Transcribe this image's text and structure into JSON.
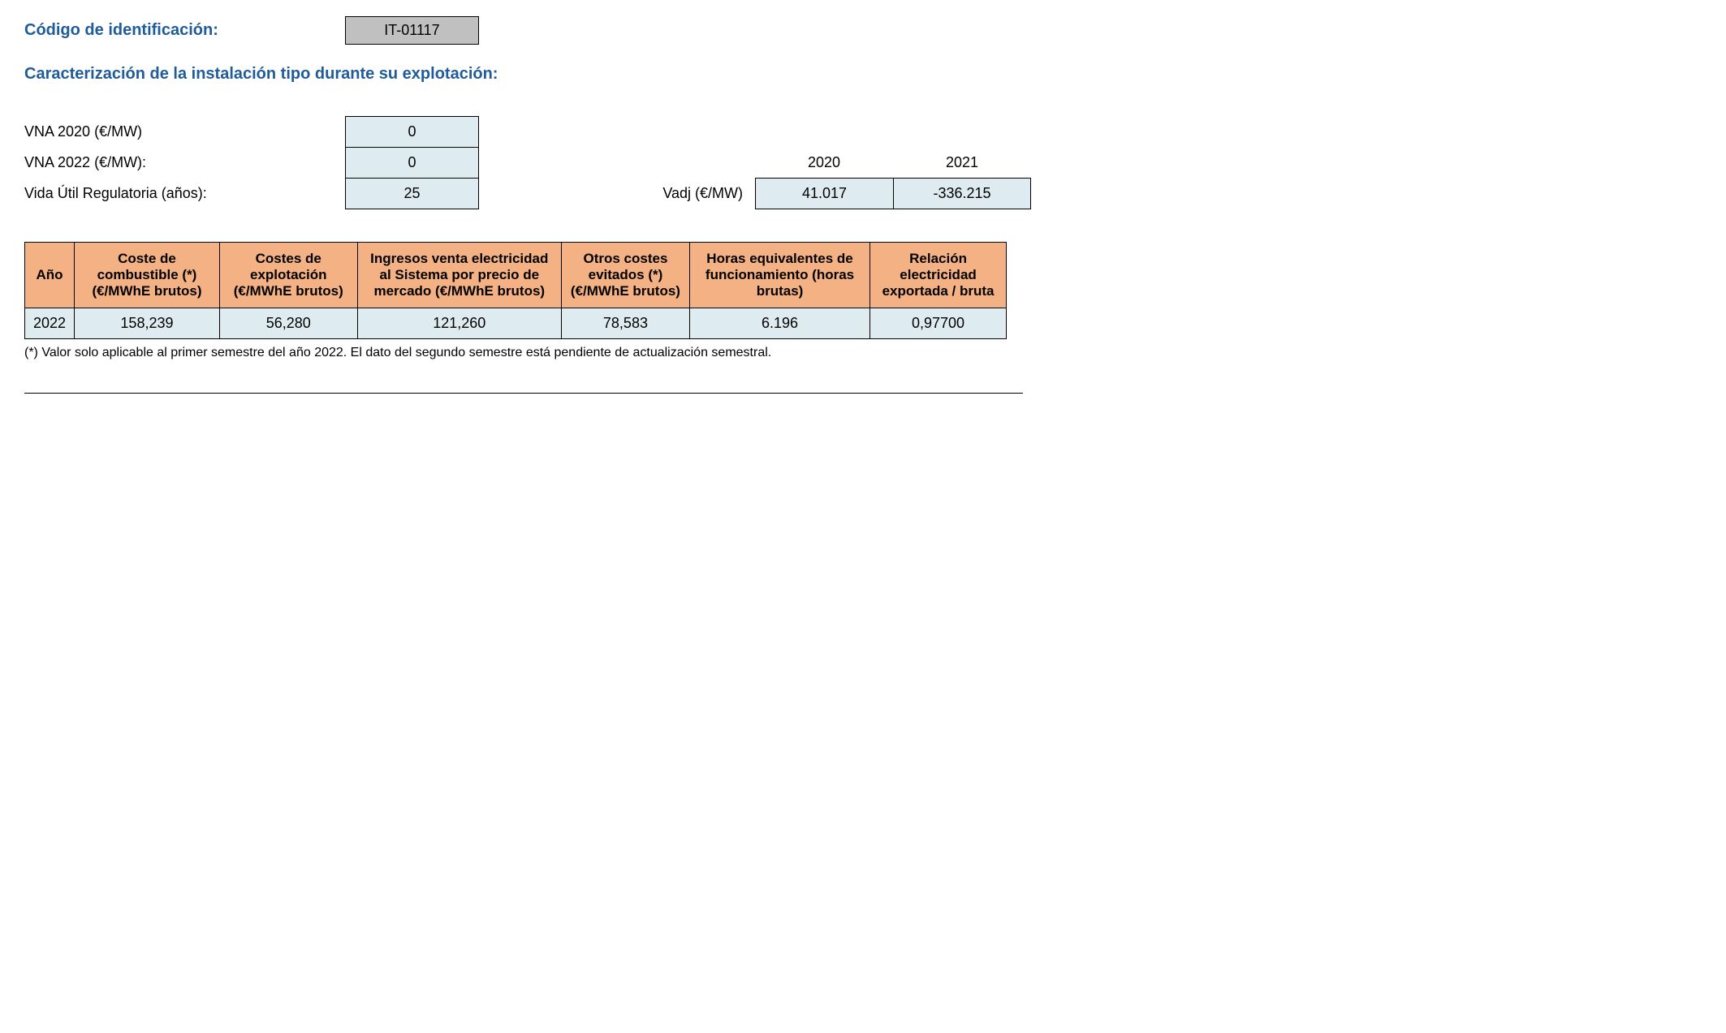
{
  "header": {
    "code_label": "Código de identificación:",
    "code_value": "IT-01117"
  },
  "section_title": "Caracterización de la instalación tipo durante su explotación:",
  "params": {
    "vna2020_label": "VNA 2020 (€/MW)",
    "vna2020_value": "0",
    "vna2022_label": "VNA 2022 (€/MW):",
    "vna2022_value": "0",
    "vida_label": "Vida Útil Regulatoria (años):",
    "vida_value": "25",
    "year_2020": "2020",
    "year_2021": "2021",
    "vadj_label": "Vadj (€/MW)",
    "vadj_2020": "41.017",
    "vadj_2021": "-336.215"
  },
  "table": {
    "columns": [
      "Año",
      "Coste de combustible (*) (€/MWhE brutos)",
      "Costes de explotación (€/MWhE brutos)",
      "Ingresos venta electricidad al Sistema por precio de mercado (€/MWhE brutos)",
      "Otros costes evitados (*) (€/MWhE brutos)",
      "Horas equivalentes de funcionamiento (horas brutas)",
      "Relación electricidad exportada / bruta"
    ],
    "row": {
      "c0": "2022",
      "c1": "158,239",
      "c2": "56,280",
      "c3": "121,260",
      "c4": "78,583",
      "c5": "6.196",
      "c6": "0,97700"
    }
  },
  "footnote": "(*) Valor solo aplicable al primer semestre del año 2022. El dato del segundo semestre está pendiente de actualización semestral.",
  "styling": {
    "header_color": "#1f5c99",
    "code_bg": "#c0c0c0",
    "value_bg": "#deebf0",
    "table_header_bg": "#f4b183",
    "border_color": "#000000",
    "body_bg": "#ffffff"
  }
}
